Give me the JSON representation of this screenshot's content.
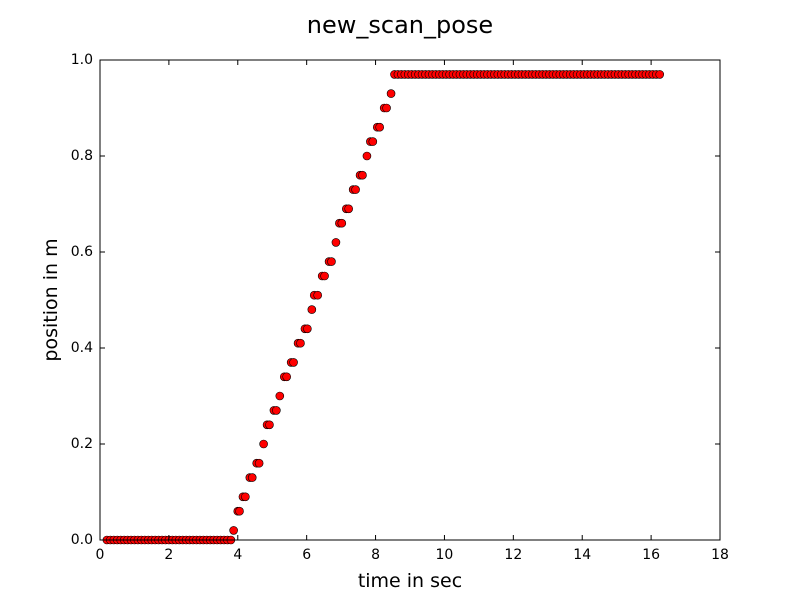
{
  "chart_data": {
    "type": "scatter",
    "title": "new_scan_pose",
    "xlabel": "time in sec",
    "ylabel": "position in m",
    "xlim": [
      0,
      18
    ],
    "ylim": [
      0,
      1.0
    ],
    "xticks": [
      "0",
      "2",
      "4",
      "6",
      "8",
      "10",
      "12",
      "14",
      "16",
      "18"
    ],
    "yticks": [
      "0.0",
      "0.2",
      "0.4",
      "0.6",
      "0.8",
      "1.0"
    ],
    "grid": false,
    "legend": "none",
    "marker_color": "#ff0000",
    "marker_edge_color": "#000000",
    "series": [
      {
        "x": [
          0.2,
          0.3,
          0.4,
          0.5,
          0.6,
          0.7,
          0.8,
          0.9,
          1.0,
          1.1,
          1.2,
          1.3,
          1.4,
          1.5,
          1.6,
          1.7,
          1.8,
          1.9,
          2.0,
          2.1,
          2.2,
          2.3,
          2.4,
          2.5,
          2.6,
          2.7,
          2.8,
          2.9,
          3.0,
          3.1,
          3.2,
          3.3,
          3.4,
          3.5,
          3.6,
          3.7,
          3.8,
          3.88,
          4.0,
          4.05,
          4.15,
          4.22,
          4.35,
          4.42,
          4.55,
          4.62,
          4.75,
          4.85,
          4.92,
          5.05,
          5.12,
          5.22,
          5.35,
          5.42,
          5.55,
          5.62,
          5.75,
          5.82,
          5.95,
          6.02,
          6.15,
          6.22,
          6.32,
          6.45,
          6.52,
          6.65,
          6.72,
          6.85,
          6.95,
          7.02,
          7.15,
          7.22,
          7.35,
          7.42,
          7.55,
          7.62,
          7.75,
          7.85,
          7.92,
          8.05,
          8.12,
          8.25,
          8.32,
          8.45,
          8.55,
          8.65,
          8.75,
          8.85,
          8.95,
          9.05,
          9.15,
          9.25,
          9.35,
          9.45,
          9.55,
          9.65,
          9.75,
          9.85,
          9.95,
          10.05,
          10.15,
          10.25,
          10.35,
          10.45,
          10.55,
          10.65,
          10.75,
          10.85,
          10.95,
          11.05,
          11.15,
          11.25,
          11.35,
          11.45,
          11.55,
          11.65,
          11.75,
          11.85,
          11.95,
          12.05,
          12.15,
          12.25,
          12.35,
          12.45,
          12.55,
          12.65,
          12.75,
          12.85,
          12.95,
          13.05,
          13.15,
          13.25,
          13.35,
          13.45,
          13.55,
          13.65,
          13.75,
          13.85,
          13.95,
          14.05,
          14.15,
          14.25,
          14.35,
          14.45,
          14.55,
          14.65,
          14.75,
          14.85,
          14.95,
          15.05,
          15.15,
          15.25,
          15.35,
          15.45,
          15.55,
          15.65,
          15.75,
          15.85,
          15.95,
          16.05,
          16.15,
          16.25
        ],
        "y": [
          0.0,
          0.0,
          0.0,
          0.0,
          0.0,
          0.0,
          0.0,
          0.0,
          0.0,
          0.0,
          0.0,
          0.0,
          0.0,
          0.0,
          0.0,
          0.0,
          0.0,
          0.0,
          0.0,
          0.0,
          0.0,
          0.0,
          0.0,
          0.0,
          0.0,
          0.0,
          0.0,
          0.0,
          0.0,
          0.0,
          0.0,
          0.0,
          0.0,
          0.0,
          0.0,
          0.0,
          0.0,
          0.02,
          0.06,
          0.06,
          0.09,
          0.09,
          0.13,
          0.13,
          0.16,
          0.16,
          0.2,
          0.24,
          0.24,
          0.27,
          0.27,
          0.3,
          0.34,
          0.34,
          0.37,
          0.37,
          0.41,
          0.41,
          0.44,
          0.44,
          0.48,
          0.51,
          0.51,
          0.55,
          0.55,
          0.58,
          0.58,
          0.62,
          0.66,
          0.66,
          0.69,
          0.69,
          0.73,
          0.73,
          0.76,
          0.76,
          0.8,
          0.83,
          0.83,
          0.86,
          0.86,
          0.9,
          0.9,
          0.93,
          0.97,
          0.97,
          0.97,
          0.97,
          0.97,
          0.97,
          0.97,
          0.97,
          0.97,
          0.97,
          0.97,
          0.97,
          0.97,
          0.97,
          0.97,
          0.97,
          0.97,
          0.97,
          0.97,
          0.97,
          0.97,
          0.97,
          0.97,
          0.97,
          0.97,
          0.97,
          0.97,
          0.97,
          0.97,
          0.97,
          0.97,
          0.97,
          0.97,
          0.97,
          0.97,
          0.97,
          0.97,
          0.97,
          0.97,
          0.97,
          0.97,
          0.97,
          0.97,
          0.97,
          0.97,
          0.97,
          0.97,
          0.97,
          0.97,
          0.97,
          0.97,
          0.97,
          0.97,
          0.97,
          0.97,
          0.97,
          0.97,
          0.97,
          0.97,
          0.97,
          0.97,
          0.97,
          0.97,
          0.97,
          0.97,
          0.97,
          0.97,
          0.97,
          0.97,
          0.97,
          0.97,
          0.97,
          0.97,
          0.97,
          0.97,
          0.97,
          0.97,
          0.97
        ]
      }
    ]
  }
}
